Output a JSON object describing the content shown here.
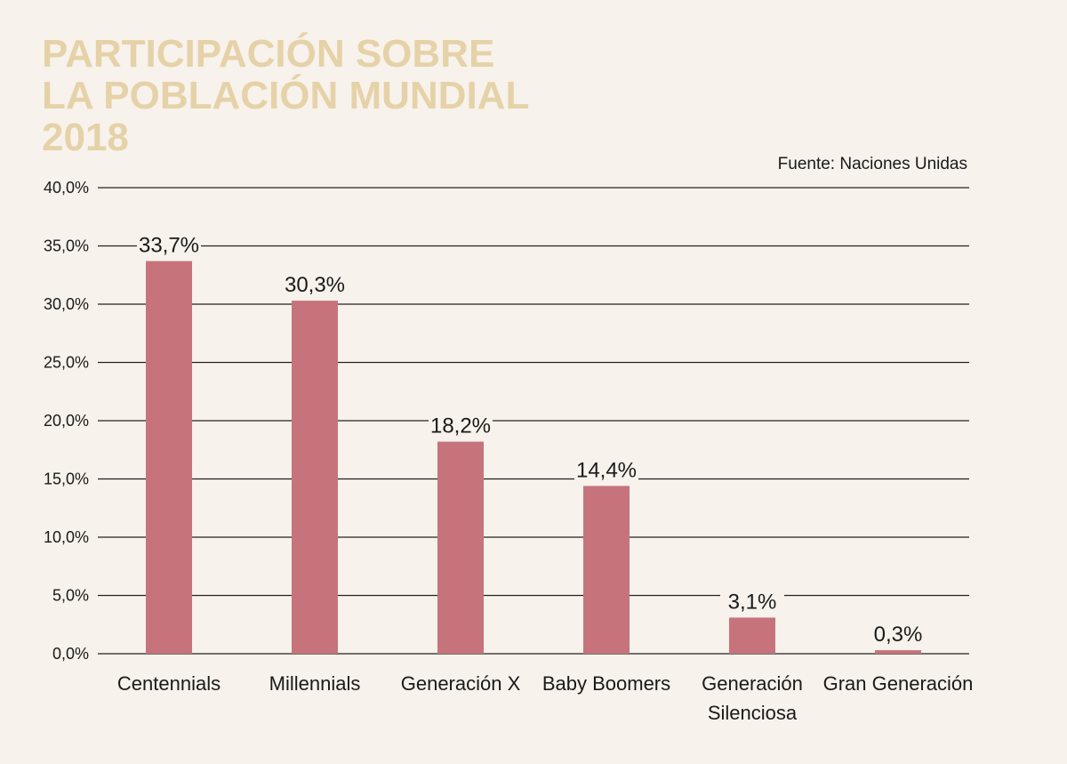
{
  "colors": {
    "background": "#f7f2eb",
    "title": "#e6d2a8",
    "bar": "#c7737c",
    "grid": "#222222",
    "text": "#1a1a1a"
  },
  "chart_data": {
    "type": "bar",
    "title_lines": [
      "PARTICIPACIÓN SOBRE",
      "LA POBLACIÓN MUNDIAL",
      "2018"
    ],
    "source": "Fuente: Naciones Unidas",
    "categories": [
      [
        "Centennials"
      ],
      [
        "Millennials"
      ],
      [
        "Generación X"
      ],
      [
        "Baby Boomers"
      ],
      [
        "Generación",
        "Silenciosa"
      ],
      [
        "Gran Generación"
      ]
    ],
    "values": [
      33.7,
      30.3,
      18.2,
      14.4,
      3.1,
      0.3
    ],
    "value_labels": [
      "33,7%",
      "30,3%",
      "18,2%",
      "14,4%",
      "3,1%",
      "0,3%"
    ],
    "ylim": [
      0,
      40
    ],
    "y_ticks": [
      0,
      5,
      10,
      15,
      20,
      25,
      30,
      35,
      40
    ],
    "y_tick_labels": [
      "0,0%",
      "5,0%",
      "10,0%",
      "15,0%",
      "20,0%",
      "25,0%",
      "30,0%",
      "35,0%",
      "40,0%"
    ],
    "grid": true,
    "legend": "none",
    "xlabel": "",
    "ylabel": ""
  }
}
